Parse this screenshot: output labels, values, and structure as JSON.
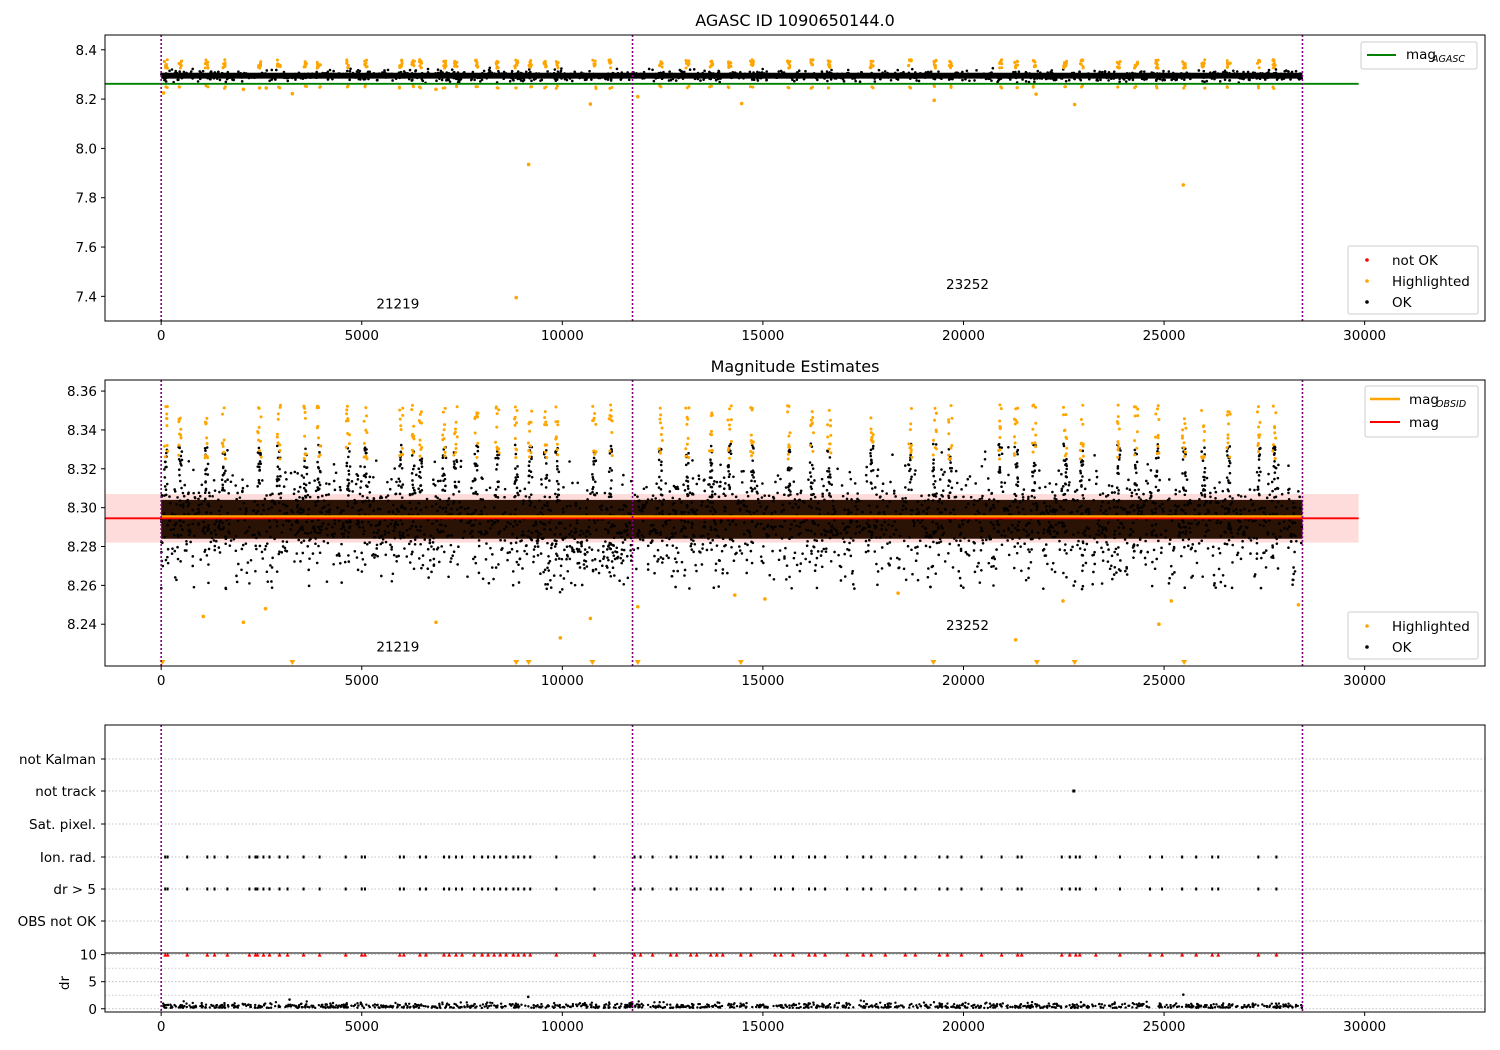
{
  "figure": {
    "background": "#ffffff"
  },
  "colors": {
    "ok": "#000000",
    "highlighted": "#ffa500",
    "not_ok": "#ff0000",
    "agasc_line": "#008000",
    "obsid_line": "#ffa500",
    "mag_line": "#ff0000",
    "mag_band": "#ffdcdc",
    "obs_boundary": "#800080",
    "grid": "#b0b0b0"
  },
  "chart_data": [
    {
      "id": "agasc",
      "type": "scatter",
      "title": "AGASC ID 1090650144.0",
      "xlabel": "",
      "ylabel": "",
      "xlim": [
        -1400,
        33000
      ],
      "ylim": [
        7.3,
        8.46
      ],
      "xticks": [
        0,
        5000,
        10000,
        15000,
        20000,
        25000,
        30000
      ],
      "yticks": [
        7.4,
        7.6,
        7.8,
        8.0,
        8.2,
        8.4
      ],
      "ytick_labels": [
        "7.4",
        "7.6",
        "7.8",
        "8.0",
        "8.2",
        "8.4"
      ],
      "reference_line": {
        "name": "mag_AGASC",
        "legend_label": "mag",
        "legend_sub": "AGASC",
        "y": 8.262,
        "x_range": [
          -1400,
          29850
        ]
      },
      "obs_boundaries": [
        0,
        11750,
        28450
      ],
      "obsids": [
        {
          "label": "21219",
          "x": 5900,
          "y": 7.35
        },
        {
          "label": "23252",
          "x": 20100,
          "y": 7.43
        }
      ],
      "band": {
        "center": 8.295,
        "spread": 0.02,
        "x_range": [
          0,
          28450
        ]
      },
      "spikes_x": [
        120,
        480,
        1130,
        1560,
        2450,
        2930,
        3590,
        3930,
        4650,
        5100,
        5980,
        6280,
        6460,
        7060,
        7340,
        7860,
        8380,
        8850,
        9200,
        9580,
        9870,
        10800,
        11200,
        12450,
        13120,
        13710,
        14170,
        14730,
        15650,
        16220,
        16650,
        17710,
        18670,
        19290,
        19670,
        20920,
        21310,
        21760,
        22530,
        22950,
        23870,
        24300,
        24830,
        25500,
        25980,
        26610,
        27360,
        27750
      ],
      "outliers": [
        {
          "x": 60,
          "y": 8.225
        },
        {
          "x": 2050,
          "y": 8.24
        },
        {
          "x": 2620,
          "y": 8.245
        },
        {
          "x": 3270,
          "y": 8.222
        },
        {
          "x": 6850,
          "y": 8.24
        },
        {
          "x": 8850,
          "y": 7.395
        },
        {
          "x": 9160,
          "y": 7.935
        },
        {
          "x": 10700,
          "y": 8.18
        },
        {
          "x": 11880,
          "y": 8.21
        },
        {
          "x": 14470,
          "y": 8.182
        },
        {
          "x": 19270,
          "y": 8.195
        },
        {
          "x": 21810,
          "y": 8.22
        },
        {
          "x": 22770,
          "y": 8.178
        },
        {
          "x": 25480,
          "y": 7.852
        }
      ],
      "legend_points": [
        {
          "label": "not OK",
          "color": "#ff0000"
        },
        {
          "label": "Highlighted",
          "color": "#ffa500"
        },
        {
          "label": "OK",
          "color": "#000000"
        }
      ]
    },
    {
      "id": "estimates",
      "type": "scatter",
      "title": "Magnitude Estimates",
      "xlabel": "",
      "ylabel": "",
      "xlim": [
        -1400,
        33000
      ],
      "ylim": [
        8.2185,
        8.3657
      ],
      "xticks": [
        0,
        5000,
        10000,
        15000,
        20000,
        25000,
        30000
      ],
      "yticks": [
        8.24,
        8.26,
        8.28,
        8.3,
        8.32,
        8.34,
        8.36
      ],
      "ytick_labels": [
        "8.24",
        "8.26",
        "8.28",
        "8.30",
        "8.32",
        "8.34",
        "8.36"
      ],
      "mag_line": {
        "name": "mag",
        "y": 8.2945,
        "band": [
          8.282,
          8.307
        ],
        "x_range": [
          -1400,
          29850
        ]
      },
      "obsid_line": {
        "name": "mag_OBSID",
        "legend_label": "mag",
        "legend_sub": "OBSID",
        "y": 8.2955,
        "x_range": [
          0,
          28450
        ]
      },
      "obs_boundaries": [
        0,
        11750,
        28450
      ],
      "obsids": [
        {
          "label": "21219",
          "x": 5900,
          "y": 8.226
        },
        {
          "label": "23252",
          "x": 20100,
          "y": 8.237
        }
      ],
      "band": {
        "center": 8.2945,
        "spread": 0.012
      },
      "spikes_x": [
        120,
        480,
        1130,
        1560,
        2450,
        2930,
        3590,
        3930,
        4650,
        5100,
        5980,
        6280,
        6460,
        7060,
        7340,
        7860,
        8380,
        8850,
        9200,
        9580,
        9870,
        10800,
        11200,
        12450,
        13120,
        13710,
        14170,
        14730,
        15650,
        16220,
        16650,
        17710,
        18670,
        19290,
        19670,
        20920,
        21310,
        21760,
        22530,
        22950,
        23870,
        24300,
        24830,
        25500,
        25980,
        26610,
        27360,
        27750
      ],
      "outliers": [
        {
          "x": 1050,
          "y": 8.244
        },
        {
          "x": 2050,
          "y": 8.241
        },
        {
          "x": 2600,
          "y": 8.248
        },
        {
          "x": 6850,
          "y": 8.241
        },
        {
          "x": 9950,
          "y": 8.233
        },
        {
          "x": 10700,
          "y": 8.243
        },
        {
          "x": 11880,
          "y": 8.249
        },
        {
          "x": 14300,
          "y": 8.255
        },
        {
          "x": 15050,
          "y": 8.253
        },
        {
          "x": 18370,
          "y": 8.256
        },
        {
          "x": 21300,
          "y": 8.232
        },
        {
          "x": 22480,
          "y": 8.252
        },
        {
          "x": 24870,
          "y": 8.24
        },
        {
          "x": 25180,
          "y": 8.252
        },
        {
          "x": 28350,
          "y": 8.25
        }
      ],
      "offscale_markers_x": [
        30,
        3270,
        8850,
        9160,
        10750,
        11880,
        14450,
        19250,
        21830,
        22770,
        25500
      ],
      "legend_points": [
        {
          "label": "Highlighted",
          "color": "#ffa500"
        },
        {
          "label": "OK",
          "color": "#000000"
        }
      ]
    },
    {
      "id": "flags",
      "type": "scatter",
      "title": "",
      "xlabel": "",
      "ylabel": "",
      "xlim": [
        -1400,
        33000
      ],
      "categories": [
        "OBS not OK",
        "dr > 5",
        "Ion. rad.",
        "Sat. pixel.",
        "not track",
        "not Kalman"
      ],
      "flag_events_x": [
        100,
        160,
        650,
        1150,
        1330,
        1650,
        2200,
        2350,
        2400,
        2550,
        2700,
        2950,
        3150,
        3550,
        3950,
        4600,
        5000,
        5080,
        5950,
        6050,
        6450,
        6600,
        7050,
        7180,
        7350,
        7500,
        7800,
        8000,
        8150,
        8300,
        8450,
        8600,
        8780,
        8900,
        9050,
        9200,
        9850,
        10800,
        11800,
        11950,
        12250,
        12700,
        12850,
        13200,
        13350,
        13700,
        13850,
        14000,
        14450,
        14700,
        15300,
        15450,
        15750,
        16150,
        16300,
        16550,
        17100,
        17500,
        17700,
        18050,
        18550,
        18800,
        19400,
        19600,
        19950,
        20450,
        20950,
        21350,
        21450,
        22450,
        22650,
        22800,
        22900,
        23300,
        23900,
        24650,
        24950,
        25450,
        25800,
        26200,
        26350,
        27350,
        27800
      ],
      "not_track_x": [
        22750
      ]
    },
    {
      "id": "dr",
      "type": "scatter",
      "title": "",
      "xlabel": "",
      "ylabel": "dr",
      "xlim": [
        -1400,
        33000
      ],
      "ylim": [
        -0.6,
        10.3
      ],
      "xticks": [
        0,
        5000,
        10000,
        15000,
        20000,
        25000,
        30000
      ],
      "yticks": [
        0,
        5,
        10
      ],
      "ytick_labels": [
        "0",
        "5",
        "10"
      ],
      "clipped_y": 10,
      "outliers": [
        {
          "x": 9150,
          "y": 2.2
        },
        {
          "x": 25480,
          "y": 2.6
        },
        {
          "x": 3200,
          "y": 1.7
        }
      ]
    }
  ]
}
